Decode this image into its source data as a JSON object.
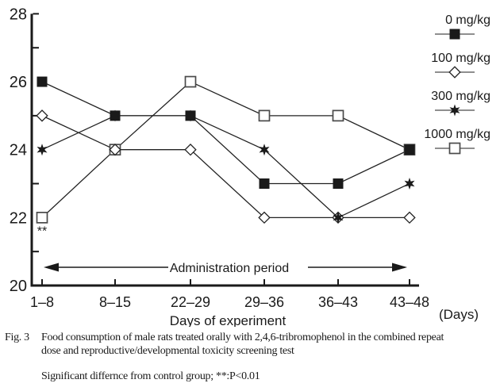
{
  "chart_data": {
    "type": "line",
    "categories": [
      "1–8",
      "8–15",
      "22–29",
      "29–36",
      "36–43",
      "43–48"
    ],
    "x_axis_unit": "(Days)",
    "xlabel": "Days of experiment",
    "ylabel": "",
    "ylim": [
      20,
      28
    ],
    "y_tick_labels": [
      28,
      26,
      24,
      22,
      20
    ],
    "grid": false,
    "legend_position": "top-right",
    "series": [
      {
        "name": "0 mg/kg",
        "marker": "filled-square",
        "values": [
          26,
          25,
          25,
          23,
          23,
          24
        ]
      },
      {
        "name": "100 mg/kg",
        "marker": "open-diamond",
        "values": [
          25,
          24,
          24,
          22,
          22,
          22
        ]
      },
      {
        "name": "300 mg/kg",
        "marker": "filled-star",
        "values": [
          24,
          25,
          25,
          24,
          22,
          23
        ]
      },
      {
        "name": "1000 mg/kg",
        "marker": "open-square",
        "values": [
          22,
          24,
          26,
          25,
          25,
          24
        ]
      }
    ],
    "annotations": {
      "significance_marker": "**",
      "significance_series": "1000 mg/kg",
      "significance_category": "1–8",
      "administration_period_label": "Administration period"
    }
  },
  "caption": {
    "fig_label": "Fig. 3",
    "lines": [
      "Food consumption of male rats treated orally with 2,4,6-tribromophenol in the combined repeat",
      "dose and reproductive/developmental toxicity screening test"
    ],
    "significance_note": "Significant differnce from control group; **:P<0.01"
  },
  "colors": {
    "ink": "#1a1a1a",
    "line": "#222222",
    "open_marker_stroke": "#4a4a4a",
    "legend_rule": "#6a6a6a",
    "background": "#ffffff"
  }
}
